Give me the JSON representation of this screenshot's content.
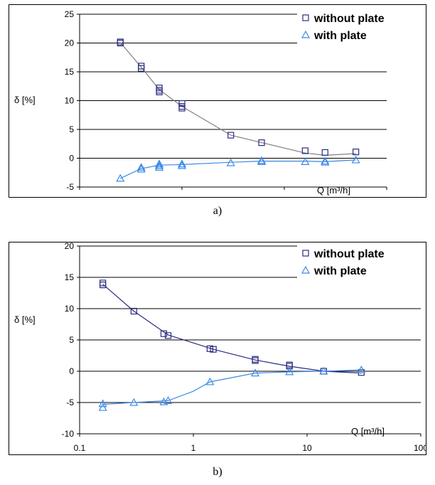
{
  "captions": {
    "a": "a)",
    "b": "b)"
  },
  "colors": {
    "without_plate": "#2b2b80",
    "with_plate": "#3d8ae6",
    "curve_a": "#808080",
    "grid": "#000000"
  },
  "chart_data": [
    {
      "id": "a",
      "type": "scatter",
      "xscale": "log",
      "xlim": [
        0.01,
        10
      ],
      "ylim": [
        -5,
        25
      ],
      "xticks": [
        "0.010",
        "0.100",
        "1.000",
        "10.000"
      ],
      "yticks": [
        "-5",
        "0",
        "5",
        "10",
        "15",
        "20",
        "25"
      ],
      "xlabel": "Q [m³/h]",
      "ylabel": "δ [%]",
      "grid": "horizontal",
      "legend_position": "top-right",
      "series": [
        {
          "name": "without plate",
          "marker": "square",
          "x": [
            0.025,
            0.025,
            0.04,
            0.04,
            0.06,
            0.06,
            0.06,
            0.1,
            0.1,
            0.1,
            0.3,
            0.6,
            1.6,
            2.5,
            5.0
          ],
          "y": [
            20.2,
            20.0,
            16.0,
            15.6,
            12.2,
            11.8,
            11.5,
            9.5,
            9.0,
            8.7,
            4.0,
            2.7,
            1.3,
            1.0,
            1.1
          ],
          "trend_x": [
            0.025,
            0.04,
            0.06,
            0.1,
            0.3,
            0.6,
            1.6,
            2.5,
            5.0
          ],
          "trend_y": [
            20.1,
            15.8,
            11.9,
            9.0,
            4.0,
            2.7,
            0.9,
            0.5,
            0.8
          ]
        },
        {
          "name": "with plate",
          "marker": "triangle",
          "x": [
            0.025,
            0.04,
            0.04,
            0.06,
            0.06,
            0.06,
            0.1,
            0.1,
            0.3,
            0.6,
            0.6,
            1.6,
            2.5,
            2.5,
            5.0
          ],
          "y": [
            -3.5,
            -1.6,
            -1.9,
            -1.0,
            -1.3,
            -1.6,
            -1.0,
            -1.3,
            -0.8,
            -0.4,
            -0.6,
            -0.6,
            -0.5,
            -0.7,
            -0.3
          ],
          "trend_x": [
            0.025,
            0.04,
            0.06,
            0.1,
            0.3,
            0.6,
            1.6,
            2.5,
            5.0
          ],
          "trend_y": [
            -3.5,
            -1.8,
            -1.2,
            -1.1,
            -0.7,
            -0.5,
            -0.5,
            -0.6,
            -0.3
          ]
        }
      ]
    },
    {
      "id": "b",
      "type": "scatter",
      "xscale": "log",
      "xlim": [
        0.1,
        100
      ],
      "ylim": [
        -10,
        20
      ],
      "xticks": [
        "0.1",
        "1",
        "10",
        "100"
      ],
      "yticks": [
        "-10",
        "-5",
        "0",
        "5",
        "10",
        "15",
        "20"
      ],
      "xlabel": "Q [m³/h]",
      "ylabel": "δ [%]",
      "grid": "horizontal",
      "legend_position": "top-right",
      "series": [
        {
          "name": "without plate",
          "marker": "square",
          "x": [
            0.16,
            0.16,
            0.3,
            0.55,
            0.6,
            1.4,
            1.5,
            3.5,
            3.5,
            7,
            7,
            14,
            30
          ],
          "y": [
            14.1,
            13.8,
            9.6,
            6.0,
            5.7,
            3.6,
            3.5,
            1.9,
            1.7,
            1.0,
            0.8,
            0.0,
            -0.2
          ],
          "trend_x": [
            0.16,
            0.3,
            0.6,
            1.5,
            3.5,
            7,
            14,
            30
          ],
          "trend_y": [
            13.9,
            9.6,
            5.8,
            3.5,
            1.8,
            0.8,
            0.0,
            -0.3
          ]
        },
        {
          "name": "with plate",
          "marker": "triangle",
          "x": [
            0.16,
            0.16,
            0.3,
            0.55,
            0.6,
            1.4,
            3.5,
            7,
            14,
            30
          ],
          "y": [
            -5.2,
            -5.8,
            -5.0,
            -4.9,
            -4.7,
            -1.7,
            -0.3,
            -0.1,
            0.0,
            0.2
          ],
          "trend_x": [
            0.16,
            0.3,
            0.6,
            1.0,
            1.4,
            3.5,
            7,
            14,
            30
          ],
          "trend_y": [
            -5.3,
            -5.0,
            -4.7,
            -3.2,
            -1.7,
            -0.3,
            -0.1,
            0.0,
            0.2
          ]
        }
      ]
    }
  ]
}
